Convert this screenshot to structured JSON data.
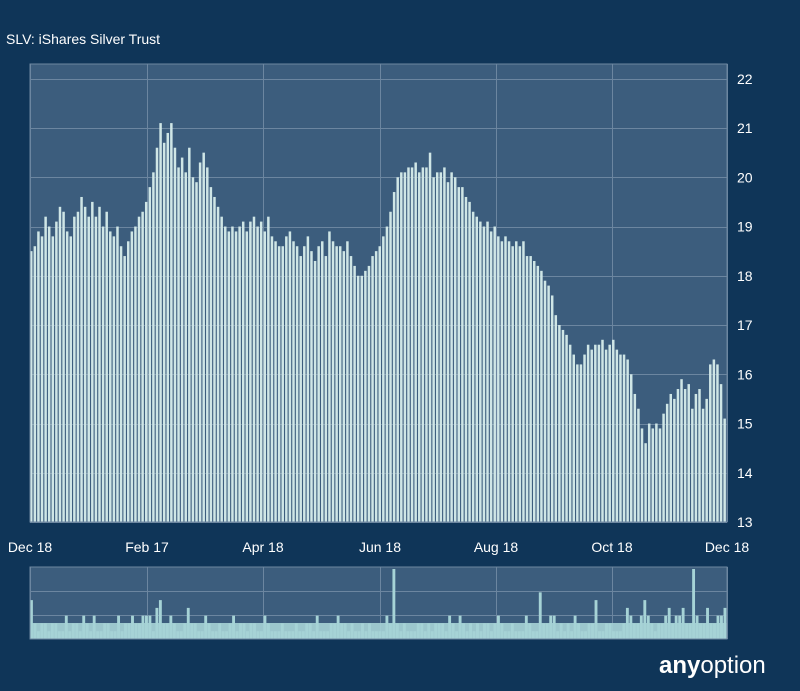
{
  "header": {
    "title": "SLV: iShares Silver Trust"
  },
  "brand": {
    "part1": "any",
    "part2": "option"
  },
  "colors": {
    "background": "#0f3558",
    "plot_background": "#3c5d7d",
    "bars": "#cfe6e6",
    "volume_bars": "#a6d3d6",
    "grid": "#6c86a0",
    "text": "#ffffff"
  },
  "chart_data": [
    {
      "type": "bar",
      "title": "SLV: iShares Silver Trust",
      "x_tick_labels": [
        "Dec 18",
        "Feb 17",
        "Apr 18",
        "Jun 18",
        "Aug 18",
        "Oct 18",
        "Dec 18"
      ],
      "y_ticks": [
        13,
        14,
        15,
        16,
        17,
        18,
        19,
        20,
        21,
        22
      ],
      "ylim": [
        13,
        22.3
      ],
      "y_axis_side": "right",
      "grid": true,
      "series": [
        {
          "values": [
            18.5,
            18.6,
            18.9,
            18.8,
            19.2,
            19.0,
            18.8,
            19.1,
            19.4,
            19.3,
            18.9,
            18.8,
            19.2,
            19.3,
            19.6,
            19.4,
            19.2,
            19.5,
            19.2,
            19.4,
            19.0,
            19.3,
            18.9,
            18.8,
            19.0,
            18.6,
            18.4,
            18.7,
            18.9,
            19.0,
            19.2,
            19.3,
            19.5,
            19.8,
            20.1,
            20.6,
            21.1,
            20.7,
            20.9,
            21.1,
            20.6,
            20.2,
            20.4,
            20.1,
            20.6,
            20.0,
            19.9,
            20.3,
            20.5,
            20.2,
            19.8,
            19.6,
            19.4,
            19.2,
            19.0,
            18.9,
            19.0,
            18.9,
            19.0,
            19.1,
            18.9,
            19.1,
            19.2,
            19.0,
            19.1,
            18.9,
            19.2,
            18.8,
            18.7,
            18.6,
            18.6,
            18.8,
            18.9,
            18.7,
            18.6,
            18.4,
            18.6,
            18.8,
            18.5,
            18.3,
            18.6,
            18.7,
            18.4,
            18.9,
            18.7,
            18.6,
            18.6,
            18.5,
            18.7,
            18.4,
            18.2,
            18.0,
            18.0,
            18.1,
            18.2,
            18.4,
            18.5,
            18.6,
            18.8,
            19.0,
            19.3,
            19.7,
            20.0,
            20.1,
            20.1,
            20.2,
            20.2,
            20.3,
            20.1,
            20.2,
            20.2,
            20.5,
            20.0,
            20.1,
            20.1,
            20.2,
            19.9,
            20.1,
            20.0,
            19.8,
            19.8,
            19.6,
            19.5,
            19.3,
            19.2,
            19.1,
            19.0,
            19.1,
            18.9,
            19.0,
            18.8,
            18.7,
            18.8,
            18.7,
            18.6,
            18.7,
            18.6,
            18.7,
            18.4,
            18.4,
            18.3,
            18.2,
            18.1,
            17.9,
            17.8,
            17.6,
            17.2,
            17.0,
            16.9,
            16.8,
            16.6,
            16.4,
            16.2,
            16.2,
            16.4,
            16.6,
            16.5,
            16.6,
            16.6,
            16.7,
            16.5,
            16.6,
            16.7,
            16.5,
            16.4,
            16.4,
            16.3,
            16.0,
            15.6,
            15.3,
            14.9,
            14.6,
            15.0,
            14.9,
            15.0,
            14.9,
            15.2,
            15.4,
            15.6,
            15.5,
            15.7,
            15.9,
            15.7,
            15.8,
            15.3,
            15.6,
            15.7,
            15.3,
            15.5,
            16.2,
            16.3,
            16.2,
            15.8,
            15.1
          ]
        }
      ]
    },
    {
      "type": "bar",
      "title": "",
      "grid": true,
      "series": [
        {
          "values": [
            5,
            2,
            1,
            2,
            2,
            1,
            2,
            2,
            1,
            1,
            3,
            1,
            2,
            2,
            1,
            3,
            2,
            1,
            3,
            1,
            1,
            2,
            2,
            1,
            1,
            3,
            1,
            2,
            2,
            3,
            2,
            2,
            3,
            3,
            3,
            1,
            4,
            5,
            2,
            2,
            3,
            2,
            1,
            1,
            2,
            4,
            2,
            2,
            1,
            1,
            3,
            2,
            1,
            1,
            2,
            1,
            1,
            2,
            3,
            1,
            2,
            2,
            1,
            2,
            2,
            1,
            1,
            3,
            2,
            1,
            1,
            1,
            2,
            1,
            1,
            1,
            2,
            1,
            1,
            2,
            2,
            1,
            3,
            1,
            1,
            1,
            2,
            2,
            3,
            2,
            2,
            1,
            2,
            1,
            1,
            2,
            1,
            2,
            1,
            1,
            1,
            1,
            3,
            2,
            9,
            2,
            1,
            2,
            1,
            1,
            1,
            2,
            2,
            1,
            2,
            1,
            2,
            2,
            2,
            1,
            3,
            2,
            1,
            3,
            2,
            1,
            2,
            1,
            2,
            1,
            2,
            2,
            1,
            2,
            3,
            2,
            1,
            1,
            2,
            1,
            1,
            1,
            3,
            2,
            1,
            1,
            6,
            2,
            2,
            3,
            3,
            1,
            2,
            1,
            2,
            1,
            3,
            2,
            1,
            1,
            2,
            2,
            5,
            1,
            1,
            2,
            2,
            1,
            1,
            1,
            2,
            4,
            3,
            2,
            2,
            3,
            5,
            3,
            2,
            1,
            2,
            2,
            3,
            4,
            2,
            3,
            3,
            4,
            2,
            2,
            9,
            3,
            2,
            2,
            4,
            2,
            2,
            3,
            3,
            4
          ]
        }
      ]
    }
  ]
}
